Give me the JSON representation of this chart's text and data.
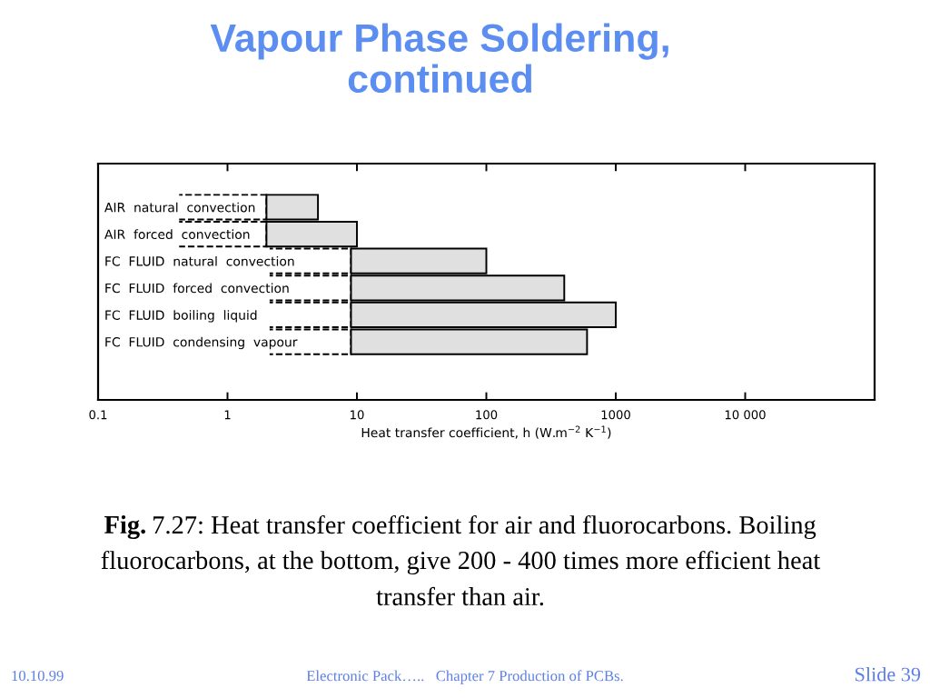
{
  "chart_data": {
    "type": "bar",
    "orientation": "horizontal",
    "log": "x",
    "title": "Vapour Phase Soldering,\ncontinued",
    "xlabel": "Heat transfer coefficient, h (W.m$^{−2}$ K$^{−1}$)",
    "categories": [
      "AIR  natural  convection",
      "AIR  forced  convection",
      "FC  FLUID  natural  convection",
      "FC  FLUID  forced  convection",
      "FC  FLUID  boiling  liquid",
      "FC  FLUID  condensing  vapour"
    ],
    "series": [
      {
        "color": "#000000",
        "line_style": "dashed",
        "base": [
          0.4,
          0.4,
          2,
          2,
          2,
          2
        ],
        "values": [
          1.6,
          1.6,
          7,
          7,
          7,
          7
        ]
      },
      {
        "color": "#e0e0e0",
        "line_style": "solid",
        "base": [
          2,
          2,
          9,
          9,
          9,
          9
        ],
        "values": [
          3,
          8,
          91,
          391,
          991,
          591
        ]
      }
    ],
    "xlim": [
      0.1,
      100000
    ],
    "xticks": [
      0.1,
      1,
      10,
      100,
      1000,
      {
        "value": 10000,
        "label": "10 000"
      }
    ],
    "annotations": [
      "Fig. 7.27: Heat transfer coefficient for air and fluorocarbons. Boiling\nfluorocarbons, at the bottom, give 200 - 400 times more efficient heat\ntransfer than air.",
      "10.10.99",
      "Electronic Pack…..   Chapter 7 Production of PCBs.",
      "Slide 39"
    ]
  }
}
